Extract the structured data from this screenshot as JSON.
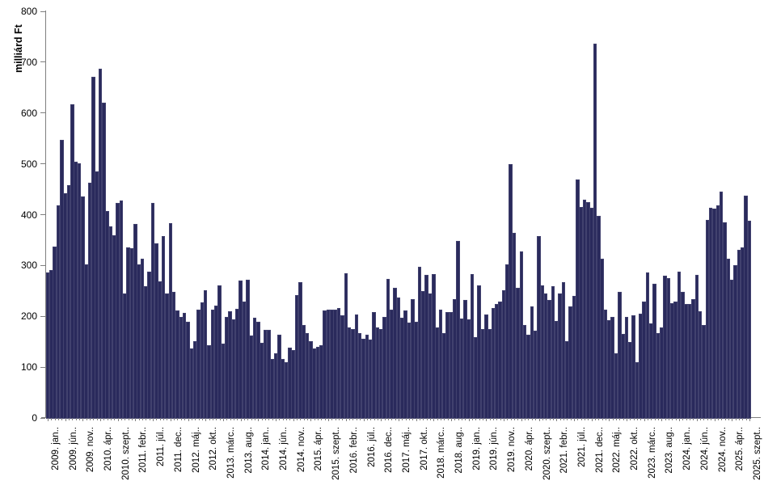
{
  "chart_data": {
    "type": "bar",
    "title": "",
    "xlabel": "",
    "ylabel": "milliárd Ft",
    "ylim": [
      0,
      800
    ],
    "y_ticks": [
      0,
      100,
      200,
      300,
      400,
      500,
      600,
      700,
      800
    ],
    "grid": "off",
    "legend": "none",
    "bar_color": "#2a2a5c",
    "axis_color": "#7f7f7f",
    "start_month": "2009. jan",
    "end_month": "2025. szept",
    "tick_every_n_months": 5,
    "x_tick_labels": [
      "2009. jan..",
      "2009. jún..",
      "2009. nov..",
      "2010. ápr..",
      "2010. szept..",
      "2011. febr..",
      "2011. júl..",
      "2011. dec..",
      "2012. máj..",
      "2012. okt..",
      "2013. márc..",
      "2013. aug..",
      "2014. jan..",
      "2014. jún..",
      "2014. nov..",
      "2015. ápr..",
      "2015. szept..",
      "2016. febr..",
      "2016. júl..",
      "2016. dec..",
      "2017. máj..",
      "2017. okt..",
      "2018. márc..",
      "2018. aug..",
      "2019. jan..",
      "2019. jún..",
      "2019. nov..",
      "2020. ápr..",
      "2020. szept..",
      "2021. febr..",
      "2021. júl..",
      "2021. dec..",
      "2022. máj..",
      "2022. okt..",
      "2023. márc..",
      "2023. aug..",
      "2024. jan..",
      "2024. jún..",
      "2024. nov..",
      "2025. ápr..",
      "2025. szept.."
    ],
    "values": [
      285,
      289,
      335,
      417,
      546,
      441,
      456,
      615,
      503,
      500,
      435,
      301,
      461,
      669,
      484,
      686,
      618,
      406,
      376,
      358,
      421,
      427,
      243,
      334,
      333,
      380,
      300,
      311,
      258,
      286,
      422,
      342,
      268,
      356,
      243,
      381,
      247,
      210,
      197,
      205,
      187,
      136,
      150,
      211,
      226,
      249,
      142,
      212,
      220,
      260,
      144,
      198,
      209,
      193,
      213,
      269,
      227,
      270,
      161,
      195,
      188,
      146,
      171,
      171,
      115,
      126,
      163,
      115,
      108,
      137,
      132,
      240,
      266,
      182,
      166,
      150,
      135,
      139,
      142,
      210,
      212,
      211,
      211,
      214,
      201,
      283,
      177,
      174,
      202,
      166,
      154,
      163,
      153,
      206,
      176,
      174,
      197,
      272,
      212,
      254,
      235,
      195,
      210,
      186,
      233,
      188,
      296,
      248,
      280,
      243,
      282,
      177,
      211,
      166,
      207,
      206,
      233,
      347,
      194,
      231,
      192,
      282,
      157,
      259,
      174,
      202,
      173,
      215,
      223,
      228,
      249,
      300,
      498,
      362,
      255,
      326,
      181,
      162,
      218,
      170,
      356,
      260,
      243,
      230,
      257,
      190,
      244,
      266,
      149,
      218,
      238,
      467,
      414,
      428,
      423,
      412,
      735,
      396,
      312,
      211,
      191,
      198,
      126,
      246,
      164,
      198,
      148,
      201,
      108,
      203,
      227,
      285,
      185,
      262,
      166,
      177,
      279,
      274,
      225,
      228,
      286,
      246,
      222,
      223,
      233,
      280,
      209,
      181,
      388,
      412,
      410,
      416,
      443,
      384,
      312,
      270,
      299,
      330,
      334,
      436,
      386
    ]
  }
}
